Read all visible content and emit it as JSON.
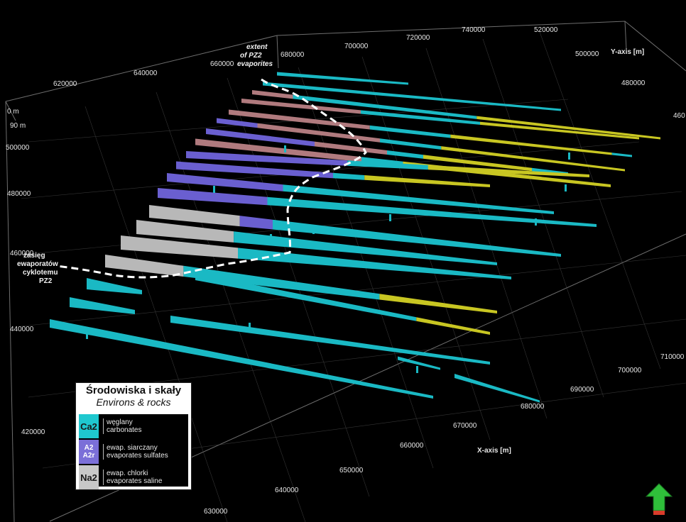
{
  "axes": {
    "x_title": "X-axis [m]",
    "y_title": "Y-axis [m]",
    "top_ticks": [
      "620000",
      "640000",
      "660000",
      "680000",
      "700000",
      "720000",
      "740000"
    ],
    "left_ticks": [
      "500000",
      "480000",
      "460000",
      "440000",
      "420000"
    ],
    "depth_ticks": [
      "0 m",
      "90 m"
    ],
    "x_ticks": [
      "630000",
      "640000",
      "650000",
      "660000",
      "670000",
      "680000",
      "690000",
      "700000",
      "710000"
    ],
    "y_ticks": [
      "520000",
      "500000",
      "480000",
      "460"
    ]
  },
  "annotations": {
    "extent_en": [
      "extent",
      "of PZ2",
      "evaporites"
    ],
    "extent_pl": [
      "zasięg",
      "ewaporatów",
      "cyklotemu",
      "PZ2"
    ]
  },
  "legend": {
    "title": "Środowiska i skały",
    "subtitle": "Environs & rocks",
    "items": [
      {
        "code": "Ca2",
        "code2": "",
        "pl": "węglany",
        "en": "carbonates",
        "color": "#1fc8cf"
      },
      {
        "code": "A2",
        "code2": "A2r",
        "pl": "ewap. siarczany",
        "en": "evaporates sulfates",
        "color": "#7b6fd8"
      },
      {
        "code": "Na2",
        "code2": "",
        "pl": "ewap. chlorki",
        "en": "evaporates saline",
        "color": "#c8c8c8"
      }
    ]
  },
  "colors": {
    "carbonate": "#1ab9c4",
    "sulfate": "#6a5fd0",
    "saline": "#b8b8b8",
    "pink": "#b07a7e",
    "yellow": "#c8c622",
    "boundary": "#ffffff"
  },
  "compass": {
    "icon": "north-arrow-icon"
  }
}
